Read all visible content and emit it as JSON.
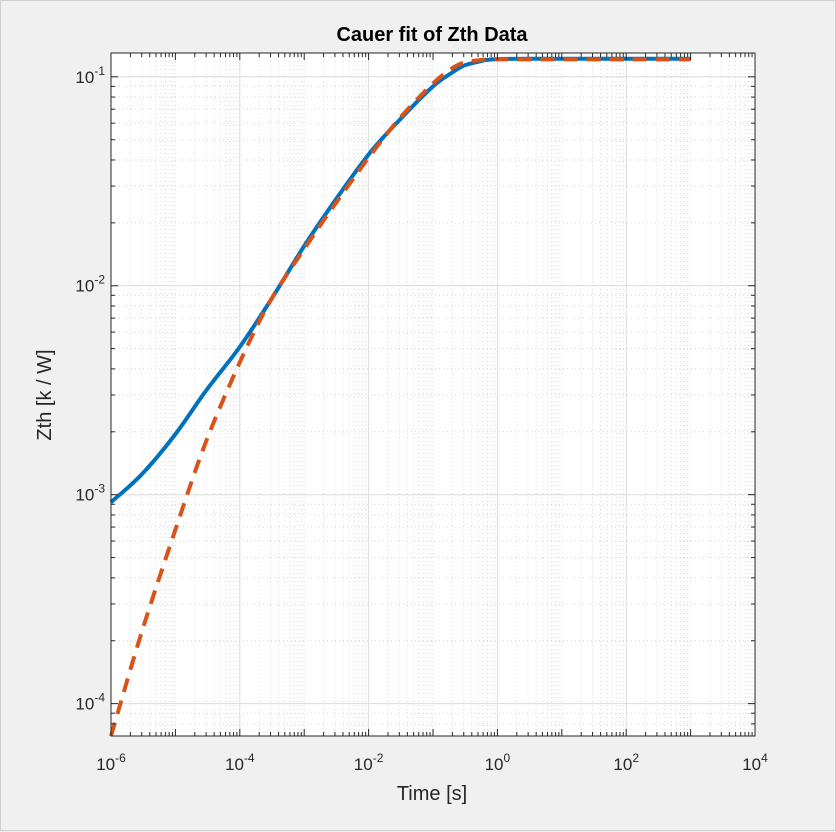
{
  "chart_data": {
    "type": "line",
    "title": "Cauer fit of Zth Data",
    "xlabel": "Time [s]",
    "ylabel": "Zth [k / W]",
    "xscale": "log",
    "yscale": "log",
    "xlim": [
      1e-06,
      10000.0
    ],
    "ylim": [
      7e-05,
      0.13
    ],
    "grid": true,
    "minor_grid": true,
    "legend": "none",
    "x_ticks": [
      {
        "base": "10",
        "exp": "-6"
      },
      {
        "base": "10",
        "exp": "-4"
      },
      {
        "base": "10",
        "exp": "-2"
      },
      {
        "base": "10",
        "exp": "0"
      },
      {
        "base": "10",
        "exp": "2"
      },
      {
        "base": "10",
        "exp": "4"
      }
    ],
    "y_ticks": [
      {
        "base": "10",
        "exp": "-4"
      },
      {
        "base": "10",
        "exp": "-3"
      },
      {
        "base": "10",
        "exp": "-2"
      },
      {
        "base": "10",
        "exp": "-1"
      }
    ],
    "series": [
      {
        "style": "solid",
        "color": "#0072bd",
        "x": [
          1e-06,
          3e-06,
          1e-05,
          3e-05,
          0.0001,
          0.0003,
          0.001,
          0.003,
          0.01,
          0.03,
          0.1,
          0.2,
          0.3,
          0.5,
          0.7,
          1,
          3,
          10,
          100,
          1000
        ],
        "y": [
          0.00092,
          0.00125,
          0.00195,
          0.00315,
          0.0051,
          0.0085,
          0.0155,
          0.0255,
          0.0425,
          0.062,
          0.09,
          0.105,
          0.113,
          0.118,
          0.1205,
          0.1215,
          0.122,
          0.122,
          0.122,
          0.122
        ]
      },
      {
        "style": "dashed",
        "color": "#d95319",
        "x": [
          1e-06,
          3e-06,
          1e-05,
          3e-05,
          0.0001,
          0.0003,
          0.001,
          0.003,
          0.01,
          0.03,
          0.1,
          0.2,
          0.3,
          0.5,
          0.7,
          1,
          3,
          10,
          100,
          1000
        ],
        "y": [
          7e-05,
          0.00022,
          0.00068,
          0.0018,
          0.0043,
          0.0085,
          0.015,
          0.0245,
          0.041,
          0.063,
          0.093,
          0.11,
          0.117,
          0.12,
          0.121,
          0.1212,
          0.1212,
          0.1212,
          0.1212,
          0.1212
        ]
      }
    ]
  }
}
